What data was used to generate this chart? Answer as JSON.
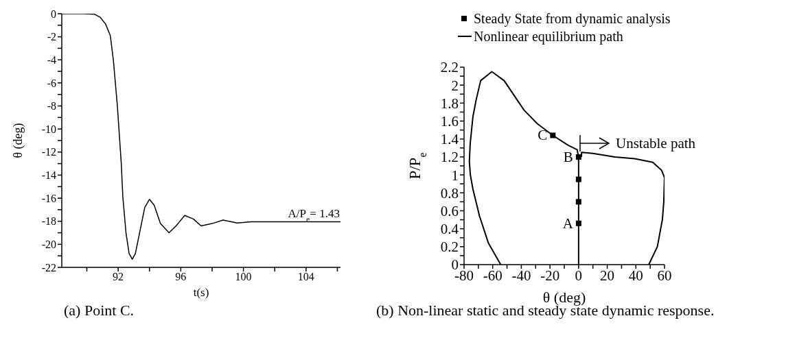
{
  "chart_data": [
    {
      "type": "line",
      "xlabel": "t(s)",
      "ylabel": "θ (deg)",
      "color": "#000000",
      "x": [
        88.4,
        89.8,
        90.5,
        90.85,
        91.2,
        91.5,
        91.7,
        91.95,
        92.2,
        92.3,
        92.5,
        92.7,
        92.9,
        93.1,
        93.4,
        93.7,
        94.0,
        94.3,
        94.7,
        95.25,
        95.7,
        96.25,
        96.8,
        97.3,
        98.0,
        98.7,
        99.6,
        100.5,
        102,
        104,
        106.2
      ],
      "values": [
        0,
        0,
        -0.05,
        -0.3,
        -0.9,
        -1.9,
        -4.1,
        -8,
        -13,
        -15.9,
        -19,
        -20.8,
        -21.3,
        -20.8,
        -18.8,
        -16.8,
        -16.1,
        -16.6,
        -18.2,
        -19,
        -18.4,
        -17.5,
        -17.8,
        -18.4,
        -18.2,
        -17.9,
        -18.15,
        -18.05,
        -18.05,
        -18.05,
        -18.05
      ],
      "xlim": [
        88.4,
        106.2
      ],
      "xticks": [
        {
          "value": 90,
          "label": null
        },
        92,
        {
          "value": 94,
          "label": null
        },
        96,
        {
          "value": 98,
          "label": null
        },
        100,
        {
          "value": 102,
          "label": null
        },
        104,
        {
          "value": 106,
          "label": null
        }
      ],
      "ylim": [
        -22,
        0
      ],
      "yticks": [
        -22,
        {
          "value": -21,
          "label": null
        },
        -20,
        {
          "value": -19,
          "label": null
        },
        -18,
        {
          "value": -17,
          "label": null
        },
        -16,
        {
          "value": -15,
          "label": null
        },
        -14,
        {
          "value": -13,
          "label": null
        },
        -12,
        {
          "value": -11,
          "label": null
        },
        -10,
        {
          "value": -9,
          "label": null
        },
        -8,
        {
          "value": -7,
          "label": null
        },
        -6,
        {
          "value": -5,
          "label": null
        },
        -4,
        {
          "value": -3,
          "label": null
        },
        -2,
        {
          "value": -1,
          "label": null
        },
        0
      ],
      "annotations": [
        {
          "text": "A/P$_{e}$= 1.43",
          "x": 104.5,
          "y": -18.05
        },
        "(a) Point C."
      ]
    },
    {
      "type": "line",
      "xlabel": "θ (deg)",
      "ylabel": "P/P$_{e}$",
      "legend": "top left",
      "series": [
        {
          "name": "Steady State from dynamic analysis",
          "type": "scatter",
          "marker": "square",
          "color": "#000000",
          "x": [
            0,
            0,
            0,
            0,
            -18
          ],
          "values": [
            0.46,
            0.7,
            0.95,
            1.2,
            1.44
          ]
        },
        {
          "name": "Nonlinear equilibrium path",
          "color": "#000000",
          "x": [
            0,
            0,
            -1,
            -7.3,
            -18,
            -28.8,
            -38,
            -52,
            -60.6,
            -68.4,
            -71.5,
            -73.8,
            -75.7,
            -76.3,
            -75.6,
            -73.8,
            -69.2,
            -63,
            -54.4,
            1,
            2,
            2.1,
            9.9,
            25.4,
            39.3,
            51.8,
            58,
            60,
            59.5,
            58.5,
            55,
            49
          ],
          "values": [
            0,
            1.2,
            1.28,
            1.33,
            1.44,
            1.57,
            1.72,
            2.05,
            2.15,
            2.05,
            1.84,
            1.65,
            1.35,
            1.15,
            1.0,
            0.84,
            0.54,
            0.24,
            0,
            null,
            1.2,
            1.25,
            1.24,
            1.2,
            1.18,
            1.14,
            1.05,
            0.97,
            0.7,
            0.5,
            0.2,
            0
          ]
        }
      ],
      "xlim": [
        -80,
        60
      ],
      "xticks": [
        -80,
        {
          "value": -70,
          "label": null
        },
        -60,
        {
          "value": -50,
          "label": null
        },
        -40,
        {
          "value": -30,
          "label": null
        },
        -20,
        {
          "value": -10,
          "label": null
        },
        0,
        {
          "value": 10,
          "label": null
        },
        20,
        {
          "value": 30,
          "label": null
        },
        40,
        {
          "value": 50,
          "label": null
        },
        60
      ],
      "ylim": [
        0,
        2.2
      ],
      "yticks": [
        0,
        {
          "value": 0.1,
          "label": null
        },
        0.2,
        {
          "value": 0.3,
          "label": null
        },
        0.4,
        {
          "value": 0.5,
          "label": null
        },
        0.6,
        {
          "value": 0.7,
          "label": null
        },
        0.8,
        {
          "value": 0.9,
          "label": null
        },
        1,
        {
          "value": 1.1,
          "label": null
        },
        1.2,
        {
          "value": 1.3,
          "label": null
        },
        1.4,
        {
          "value": 1.5,
          "label": null
        },
        1.6,
        {
          "value": 1.7,
          "label": null
        },
        1.8,
        {
          "value": 1.9,
          "label": null
        },
        2,
        {
          "value": 2.1,
          "label": null
        },
        2.2
      ],
      "annotations": [
        {
          "text": "C",
          "x": -18,
          "y": 1.44
        },
        {
          "text": "B",
          "x": 0,
          "y": 1.2
        },
        {
          "text": "A",
          "x": 0,
          "y": 0.46
        },
        "Unstable path",
        "(b) Non-linear static and steady state dynamic response."
      ]
    }
  ]
}
